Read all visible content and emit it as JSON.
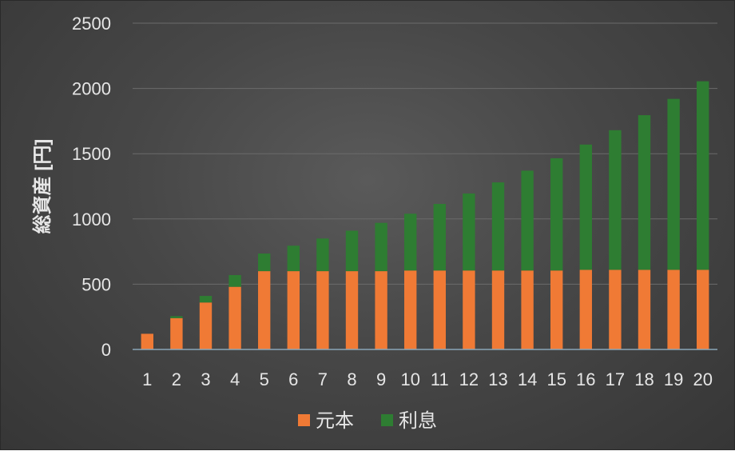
{
  "chart_data": {
    "type": "bar",
    "stacked": true,
    "ylabel": "総資産 [円]",
    "xlabel": "",
    "ylim": [
      0,
      2500
    ],
    "yticks": [
      "0",
      "500",
      "1000",
      "1500",
      "2000",
      "2500"
    ],
    "grid": true,
    "legend_position": "bottom",
    "categories": [
      "1",
      "2",
      "3",
      "4",
      "5",
      "6",
      "7",
      "8",
      "9",
      "10",
      "11",
      "12",
      "13",
      "14",
      "15",
      "16",
      "17",
      "18",
      "19",
      "20"
    ],
    "series": [
      {
        "name": "元本",
        "color": "#f07a35",
        "values": [
          120,
          240,
          360,
          480,
          600,
          600,
          600,
          600,
          600,
          605,
          605,
          605,
          605,
          605,
          605,
          610,
          610,
          610,
          610,
          610
        ]
      },
      {
        "name": "利息",
        "color": "#2e7d32",
        "values": [
          0,
          15,
          50,
          90,
          135,
          195,
          250,
          310,
          370,
          435,
          510,
          590,
          675,
          765,
          860,
          960,
          1070,
          1185,
          1310,
          1445
        ]
      }
    ]
  }
}
